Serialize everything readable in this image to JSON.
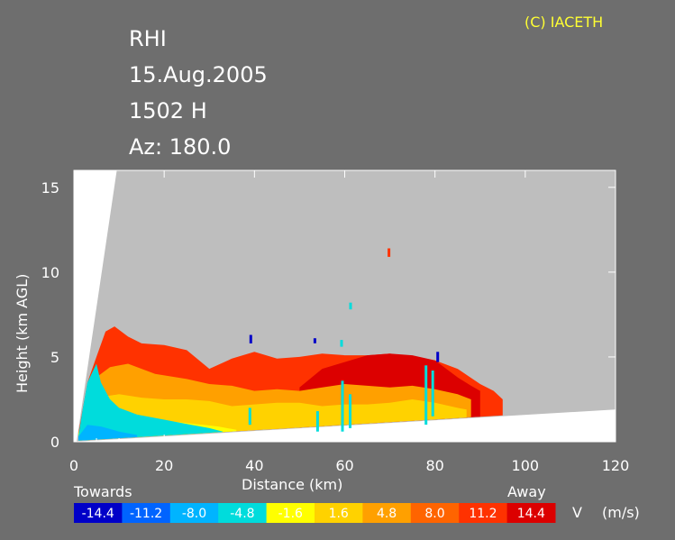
{
  "copyright": "(C) IACETH",
  "header": {
    "product": "RHI",
    "date": "15.Aug.2005",
    "time": "1502 H",
    "azimuth": "Az: 180.0"
  },
  "chart_data": {
    "type": "heatmap",
    "title": "",
    "xlabel": "Distance    (km)",
    "ylabel": "Height  (km AGL)",
    "xlim": [
      0,
      120
    ],
    "ylim": [
      0,
      16
    ],
    "x_ticks": [
      "0",
      "20",
      "40",
      "60",
      "80",
      "100",
      "120"
    ],
    "y_ticks": [
      "0",
      "5",
      "10",
      "15"
    ],
    "variable": "V",
    "units": "(m/s)",
    "direction_labels": {
      "negative": "Towards",
      "positive": "Away"
    },
    "colorbar": {
      "labels": [
        "-14.4",
        "-11.2",
        "-8.0",
        "-4.8",
        "-1.6",
        "1.6",
        "4.8",
        "8.0",
        "11.2",
        "14.4"
      ],
      "colors": [
        "#0000c8",
        "#0064ff",
        "#00b4ff",
        "#00dcdc",
        "#ffff00",
        "#ffd200",
        "#ffa000",
        "#ff6400",
        "#ff3200",
        "#dc0000"
      ]
    },
    "background_color": "#bebebe",
    "blank_color": "#ffffff",
    "echo_layers": [
      {
        "name": "",
        "color": "#ff3200",
        "profile": [
          [
            1,
            0.5
          ],
          [
            3,
            3.5
          ],
          [
            5,
            5
          ],
          [
            7,
            6.5
          ],
          [
            9,
            6.8
          ],
          [
            12,
            6.2
          ],
          [
            15,
            5.8
          ],
          [
            20,
            5.7
          ],
          [
            25,
            5.4
          ],
          [
            30,
            4.3
          ],
          [
            35,
            4.9
          ],
          [
            40,
            5.3
          ],
          [
            45,
            4.9
          ],
          [
            50,
            5.0
          ],
          [
            55,
            5.2
          ],
          [
            60,
            5.1
          ],
          [
            65,
            5.1
          ],
          [
            70,
            5.2
          ],
          [
            75,
            5.0
          ],
          [
            80,
            4.8
          ],
          [
            85,
            4.3
          ],
          [
            90,
            3.4
          ],
          [
            93,
            3.0
          ],
          [
            95,
            2.5
          ]
        ]
      },
      {
        "name": "",
        "color": "#dc0000",
        "profile": [
          [
            50,
            3.2
          ],
          [
            55,
            4.3
          ],
          [
            60,
            4.7
          ],
          [
            65,
            5.1
          ],
          [
            70,
            5.2
          ],
          [
            75,
            5.1
          ],
          [
            80,
            4.8
          ],
          [
            85,
            3.8
          ],
          [
            88,
            3.3
          ],
          [
            90,
            3.0
          ]
        ]
      },
      {
        "name": "",
        "color": "#ffa000",
        "profile": [
          [
            1,
            0.5
          ],
          [
            3,
            2.5
          ],
          [
            5,
            3.8
          ],
          [
            8,
            4.4
          ],
          [
            12,
            4.6
          ],
          [
            18,
            4.0
          ],
          [
            25,
            3.7
          ],
          [
            30,
            3.4
          ],
          [
            35,
            3.3
          ],
          [
            40,
            3.0
          ],
          [
            45,
            3.1
          ],
          [
            50,
            3.0
          ],
          [
            55,
            3.2
          ],
          [
            60,
            3.4
          ],
          [
            65,
            3.3
          ],
          [
            70,
            3.2
          ],
          [
            75,
            3.3
          ],
          [
            80,
            3.1
          ],
          [
            85,
            2.8
          ],
          [
            88,
            2.5
          ]
        ]
      },
      {
        "name": "",
        "color": "#ffd200",
        "profile": [
          [
            1,
            0.5
          ],
          [
            3,
            1.8
          ],
          [
            5,
            2.6
          ],
          [
            10,
            2.8
          ],
          [
            15,
            2.6
          ],
          [
            20,
            2.5
          ],
          [
            25,
            2.5
          ],
          [
            30,
            2.4
          ],
          [
            35,
            2.1
          ],
          [
            40,
            2.2
          ],
          [
            45,
            2.3
          ],
          [
            50,
            2.3
          ],
          [
            55,
            2.1
          ],
          [
            60,
            2.2
          ],
          [
            65,
            2.2
          ],
          [
            70,
            2.3
          ],
          [
            75,
            2.5
          ],
          [
            80,
            2.3
          ],
          [
            85,
            2.0
          ],
          [
            87,
            1.9
          ]
        ]
      },
      {
        "name": "",
        "color": "#ffff00",
        "profile": [
          [
            1,
            0.5
          ],
          [
            3,
            1.5
          ],
          [
            6,
            2.0
          ],
          [
            12,
            1.5
          ],
          [
            18,
            1.3
          ],
          [
            25,
            1.1
          ],
          [
            32,
            0.9
          ],
          [
            36,
            0.7
          ]
        ]
      },
      {
        "name": "",
        "color": "#00dcdc",
        "profile": [
          [
            1,
            0.3
          ],
          [
            2,
            2.0
          ],
          [
            3,
            3.5
          ],
          [
            5,
            4.6
          ],
          [
            6,
            3.5
          ],
          [
            8,
            2.5
          ],
          [
            10,
            2.0
          ],
          [
            14,
            1.6
          ],
          [
            20,
            1.3
          ],
          [
            26,
            1.0
          ],
          [
            30,
            0.8
          ],
          [
            33,
            0.6
          ]
        ]
      },
      {
        "name": "",
        "color": "#00b4ff",
        "profile": [
          [
            1,
            0.3
          ],
          [
            3,
            1.0
          ],
          [
            6,
            0.9
          ],
          [
            10,
            0.6
          ],
          [
            14,
            0.4
          ]
        ]
      }
    ],
    "speckles": [
      {
        "color": "#00dcdc",
        "x": 39,
        "y0": 1.0,
        "y1": 2.0
      },
      {
        "color": "#00dcdc",
        "x": 54,
        "y0": 0.6,
        "y1": 1.8
      },
      {
        "color": "#00dcdc",
        "x": 59.5,
        "y0": 0.6,
        "y1": 3.6
      },
      {
        "color": "#00dcdc",
        "x": 61.2,
        "y0": 0.8,
        "y1": 2.8
      },
      {
        "color": "#00dcdc",
        "x": 78,
        "y0": 1.0,
        "y1": 4.5
      },
      {
        "color": "#00dcdc",
        "x": 79.5,
        "y0": 1.5,
        "y1": 4.2
      },
      {
        "color": "#00dcdc",
        "x": 61.3,
        "y0": 7.8,
        "y1": 8.2
      },
      {
        "color": "#00dcdc",
        "x": 59.3,
        "y0": 5.6,
        "y1": 6.0
      },
      {
        "color": "#ff3200",
        "x": 69.8,
        "y0": 10.9,
        "y1": 11.4
      },
      {
        "color": "#0000c8",
        "x": 80.6,
        "y0": 4.7,
        "y1": 5.3
      },
      {
        "color": "#0000c8",
        "x": 53.4,
        "y0": 5.8,
        "y1": 6.1
      },
      {
        "color": "#0000c8",
        "x": 39.2,
        "y0": 5.8,
        "y1": 6.3
      }
    ]
  }
}
